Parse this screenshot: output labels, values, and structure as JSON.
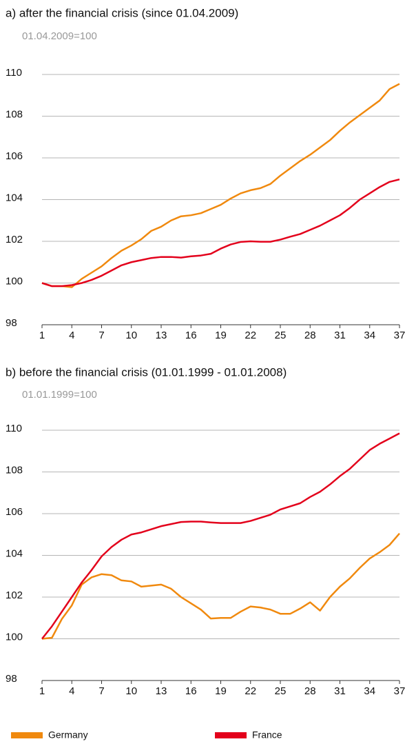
{
  "chart_data": [
    {
      "type": "line",
      "title": "a) after the financial crisis (since 01.04.2009)",
      "subtitle": "01.04.2009=100",
      "x": [
        1,
        2,
        3,
        4,
        5,
        6,
        7,
        8,
        9,
        10,
        11,
        12,
        13,
        14,
        15,
        16,
        17,
        18,
        19,
        20,
        21,
        22,
        23,
        24,
        25,
        26,
        27,
        28,
        29,
        30,
        31,
        32,
        33,
        34,
        35,
        36,
        37
      ],
      "xlim": [
        1,
        37
      ],
      "xticks": [
        1,
        4,
        7,
        10,
        13,
        16,
        19,
        22,
        25,
        28,
        31,
        34,
        37
      ],
      "ylim": [
        98,
        110
      ],
      "yticks": [
        98,
        100,
        102,
        104,
        106,
        108,
        110
      ],
      "grid": true,
      "series": [
        {
          "name": "Germany",
          "color": "#f0890e",
          "values": [
            100,
            99.85,
            99.85,
            99.8,
            100.2,
            100.5,
            100.8,
            101.2,
            101.55,
            101.8,
            102.1,
            102.5,
            102.7,
            103.0,
            103.2,
            103.25,
            103.35,
            103.55,
            103.75,
            104.05,
            104.3,
            104.45,
            104.55,
            104.75,
            105.15,
            105.5,
            105.85,
            106.15,
            106.5,
            106.85,
            107.3,
            107.7,
            108.05,
            108.4,
            108.75,
            109.3,
            109.55
          ]
        },
        {
          "name": "France",
          "color": "#e3001b",
          "values": [
            100,
            99.85,
            99.85,
            99.9,
            100.0,
            100.15,
            100.35,
            100.6,
            100.85,
            101.0,
            101.1,
            101.2,
            101.25,
            101.25,
            101.22,
            101.28,
            101.32,
            101.4,
            101.65,
            101.85,
            101.97,
            102.0,
            101.98,
            101.98,
            102.08,
            102.22,
            102.35,
            102.55,
            102.75,
            103.0,
            103.25,
            103.6,
            104.0,
            104.3,
            104.6,
            104.85,
            104.97
          ]
        }
      ]
    },
    {
      "type": "line",
      "title": "b) before the financial crisis (01.01.1999 - 01.01.2008)",
      "subtitle": "01.01.1999=100",
      "x": [
        1,
        2,
        3,
        4,
        5,
        6,
        7,
        8,
        9,
        10,
        11,
        12,
        13,
        14,
        15,
        16,
        17,
        18,
        19,
        20,
        21,
        22,
        23,
        24,
        25,
        26,
        27,
        28,
        29,
        30,
        31,
        32,
        33,
        34,
        35,
        36,
        37
      ],
      "xlim": [
        1,
        37
      ],
      "xticks": [
        1,
        4,
        7,
        10,
        13,
        16,
        19,
        22,
        25,
        28,
        31,
        34,
        37
      ],
      "ylim": [
        98,
        110
      ],
      "yticks": [
        98,
        100,
        102,
        104,
        106,
        108,
        110
      ],
      "grid": true,
      "series": [
        {
          "name": "Germany",
          "color": "#f0890e",
          "values": [
            100,
            100.05,
            100.95,
            101.6,
            102.6,
            102.95,
            103.1,
            103.05,
            102.8,
            102.75,
            102.5,
            102.55,
            102.6,
            102.4,
            102.0,
            101.7,
            101.4,
            100.97,
            101.0,
            101.0,
            101.3,
            101.55,
            101.5,
            101.4,
            101.2,
            101.2,
            101.45,
            101.75,
            101.35,
            102.0,
            102.5,
            102.9,
            103.4,
            103.85,
            104.15,
            104.5,
            105.05
          ]
        },
        {
          "name": "France",
          "color": "#e3001b",
          "values": [
            100,
            100.6,
            101.3,
            102.0,
            102.7,
            103.3,
            103.95,
            104.4,
            104.75,
            105.0,
            105.1,
            105.25,
            105.4,
            105.5,
            105.6,
            105.62,
            105.62,
            105.58,
            105.55,
            105.55,
            105.55,
            105.65,
            105.8,
            105.95,
            106.2,
            106.35,
            106.5,
            106.8,
            107.05,
            107.4,
            107.8,
            108.15,
            108.6,
            109.05,
            109.35,
            109.6,
            109.85
          ]
        }
      ]
    }
  ]
}
